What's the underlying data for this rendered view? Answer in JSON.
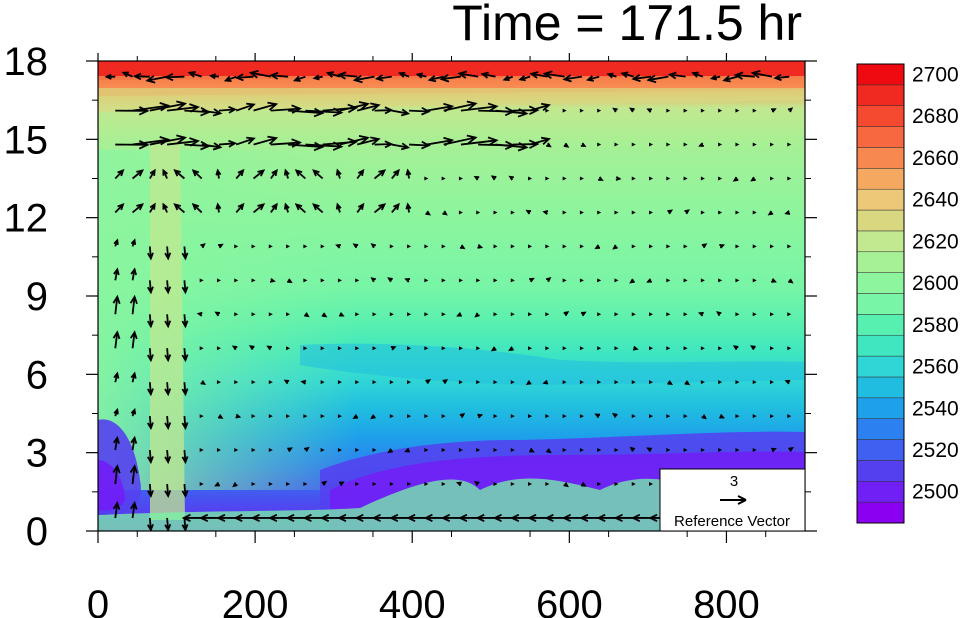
{
  "chart_data": {
    "type": "heatmap",
    "title": "Time = 171.5 hr",
    "xlabel": "",
    "ylabel": "",
    "xlim": [
      0,
      900
    ],
    "ylim": [
      0,
      18
    ],
    "x_ticks": [
      "0",
      "200",
      "400",
      "600",
      "800"
    ],
    "x_tick_values": [
      0,
      200,
      400,
      600,
      800
    ],
    "y_ticks": [
      "0",
      "3",
      "6",
      "9",
      "12",
      "15",
      "18"
    ],
    "y_tick_values": [
      0,
      3,
      6,
      9,
      12,
      15,
      18
    ],
    "colorbar": {
      "levels": [
        2495,
        2500,
        2510,
        2520,
        2530,
        2540,
        2550,
        2560,
        2570,
        2580,
        2590,
        2600,
        2610,
        2620,
        2630,
        2640,
        2650,
        2660,
        2670,
        2680,
        2690,
        2700,
        2710
      ],
      "labels": [
        "2500",
        "2520",
        "2540",
        "2560",
        "2580",
        "2600",
        "2620",
        "2640",
        "2660",
        "2680",
        "2700"
      ],
      "label_values": [
        2500,
        2520,
        2540,
        2560,
        2580,
        2600,
        2620,
        2640,
        2660,
        2680,
        2700
      ],
      "colors": [
        "#8a00f0",
        "#7020f5",
        "#5540f0",
        "#3f60f0",
        "#2d80ef",
        "#1ea0ea",
        "#20bde0",
        "#30d6d6",
        "#3fe6c0",
        "#58f0b0",
        "#78f5a6",
        "#8cf59e",
        "#a6f095",
        "#c2e890",
        "#d9d880",
        "#ecc878",
        "#f5a860",
        "#f78850",
        "#f76840",
        "#f54a30",
        "#f02a20",
        "#ee0a10"
      ]
    },
    "reference_vector": {
      "magnitude": "3",
      "label": "Reference Vector"
    },
    "grid": false,
    "legend_placement": "right"
  },
  "colors": {
    "background": "#ffffff",
    "frame": "#000000",
    "arrow": "#000000"
  }
}
